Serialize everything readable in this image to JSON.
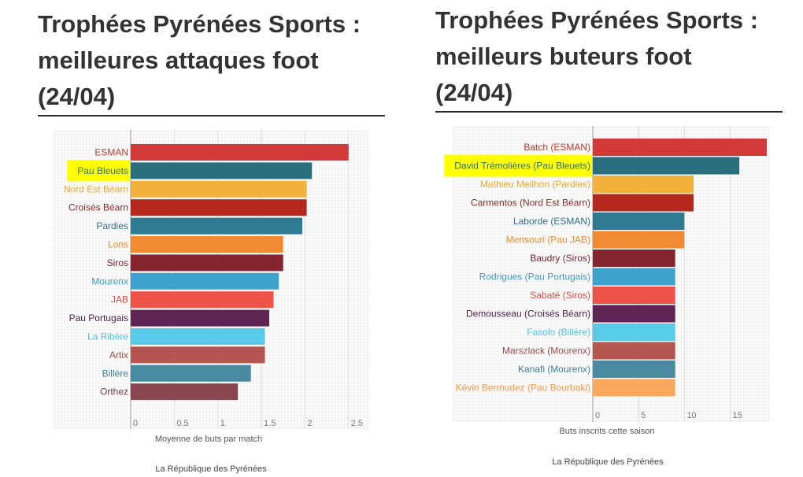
{
  "charts": [
    {
      "title_lines": [
        "Trophées Pyrénées Sports :",
        "meilleures attaques foot",
        "(24/04)"
      ],
      "source": "La République des Pyrénées",
      "highlight_color": "#ffff00",
      "chart_data": {
        "type": "bar",
        "orientation": "horizontal",
        "categories": [
          "ESMAN",
          "Pau Bleuets",
          "Nord Est Béarn",
          "Croisés Béarn",
          "Pardies",
          "Lons",
          "Siros",
          "Mourenx",
          "JAB",
          "Pau Portugais",
          "La Ribère",
          "Artix",
          "Billère",
          "Orthez"
        ],
        "values": [
          2.5,
          2.08,
          2.02,
          2.02,
          1.97,
          1.75,
          1.75,
          1.7,
          1.64,
          1.59,
          1.54,
          1.54,
          1.38,
          1.23
        ],
        "colors": [
          "#d23a3a",
          "#2b6e7d",
          "#f3b23c",
          "#b5281e",
          "#2e7a93",
          "#f08b33",
          "#85252f",
          "#3ea3cc",
          "#ee5349",
          "#5e2453",
          "#58cbe8",
          "#b55650",
          "#4a8aa0",
          "#8a4650"
        ],
        "label_colors": [
          "#c0392b",
          "#2b6e7d",
          "#f0a830",
          "#8e2a22",
          "#2e6f8a",
          "#ef8a30",
          "#7a1f2a",
          "#3a9cc4",
          "#e84a3f",
          "#4a1f44",
          "#4cc3e6",
          "#a24a45",
          "#3e7f98",
          "#7a3a44"
        ],
        "highlighted": [
          "Pau Bleuets"
        ],
        "xlabel": "Moyenne de buts par match",
        "ylabel": "",
        "xlim": [
          0,
          2.9
        ],
        "xticks": [
          0,
          0.5,
          1,
          1.5,
          2,
          2.5
        ],
        "xtick_labels": [
          "0",
          "0.5",
          "1",
          "1.5",
          "2",
          "2.5"
        ],
        "grid": true,
        "legend": "none"
      }
    },
    {
      "title_lines": [
        "Trophées Pyrénées Sports :",
        "meilleurs buteurs foot",
        "(24/04)"
      ],
      "source": "La République des Pyrénées",
      "highlight_color": "#ffff00",
      "chart_data": {
        "type": "bar",
        "orientation": "horizontal",
        "categories": [
          "Batch (ESMAN)",
          "David Trémolières (Pau Bleuets)",
          "Mathieu Meilhon (Pardies)",
          "Carmentos (Nord Est Béarn)",
          "Laborde (ESMAN)",
          "Mensouri (Pau JAB)",
          "Baudry (Siros)",
          "Rodrigues (Pau Portugais)",
          "Sabaté (Siros)",
          "Demousseau (Croisés Béarn)",
          "Fasolo (Billère)",
          "Marszlack (Mourenx)",
          "Kanafi (Mourenx)",
          "Kévin Bermudez (Pau Bourbaki)"
        ],
        "values": [
          19,
          16,
          11,
          11,
          10,
          10,
          9,
          9,
          9,
          9,
          9,
          9,
          9,
          9
        ],
        "colors": [
          "#d23a3a",
          "#2b6e7d",
          "#f3b23c",
          "#b5281e",
          "#2e7a93",
          "#f08b33",
          "#85252f",
          "#3ea3cc",
          "#ee5349",
          "#5e2453",
          "#58cbe8",
          "#b55650",
          "#4a8aa0",
          "#fba85f"
        ],
        "label_colors": [
          "#c0392b",
          "#2b6e7d",
          "#f0a830",
          "#8e2a22",
          "#2e6f8a",
          "#ef8a30",
          "#7a1f2a",
          "#3a9cc4",
          "#e84a3f",
          "#4a1f44",
          "#4cc3e6",
          "#a24a45",
          "#3e7f98",
          "#f59a4a"
        ],
        "highlighted": [
          "David Trémolières (Pau Bleuets)"
        ],
        "xlabel": "Buts inscrits cette saison",
        "ylabel": "",
        "xlim": [
          0,
          19
        ],
        "xticks": [
          0,
          5,
          10,
          15
        ],
        "xtick_labels": [
          "0",
          "5",
          "10",
          "15"
        ],
        "grid": true,
        "legend": "none"
      }
    }
  ]
}
